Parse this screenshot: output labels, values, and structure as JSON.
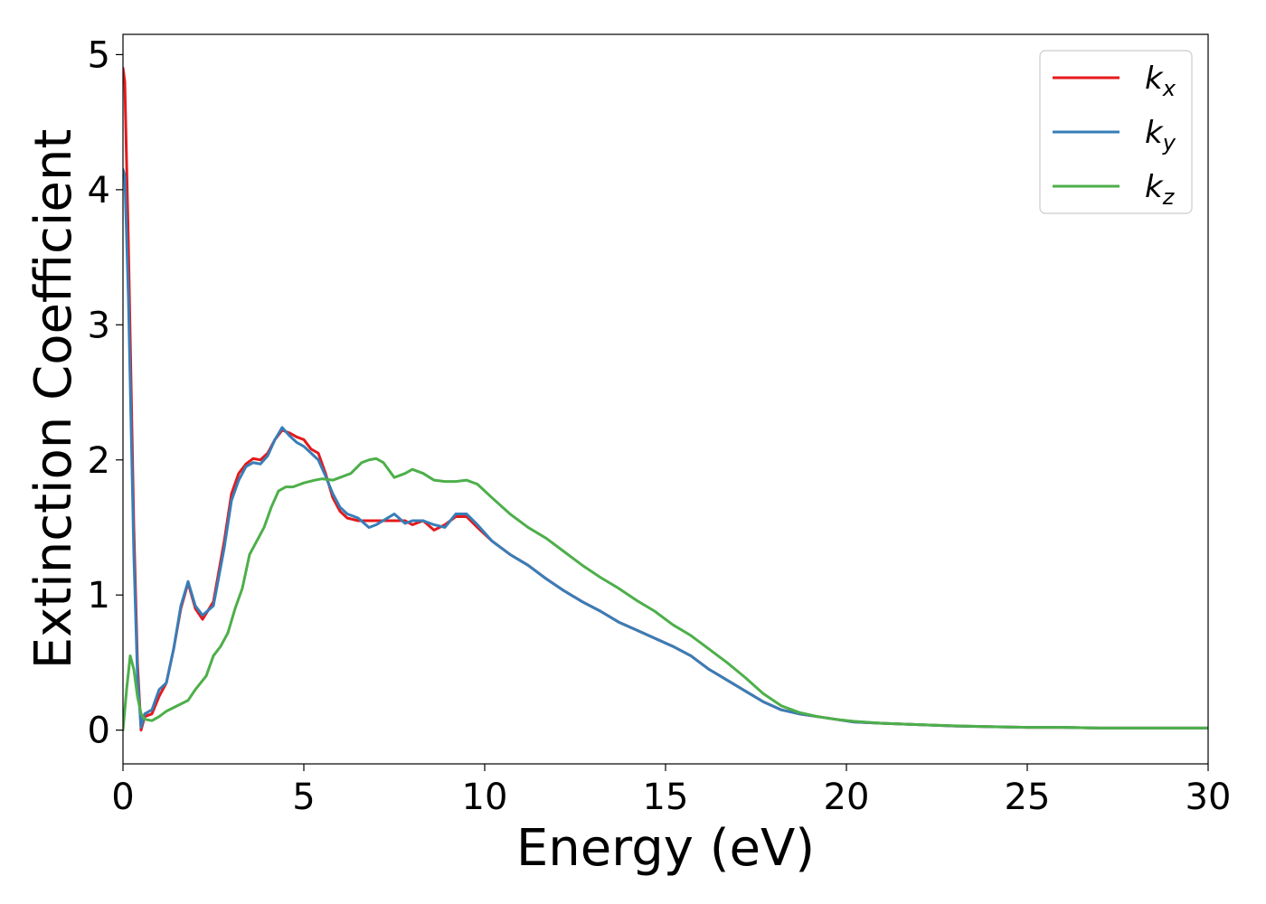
{
  "chart_data": {
    "type": "line",
    "title": "",
    "xlabel": "Energy (eV)",
    "ylabel": "Extinction Coefficient",
    "xlim": [
      0,
      30
    ],
    "ylim": [
      -0.25,
      5.15
    ],
    "xticks": [
      0,
      5,
      10,
      15,
      20,
      25,
      30
    ],
    "yticks": [
      0,
      1,
      2,
      3,
      4,
      5
    ],
    "xtick_labels": [
      "0",
      "5",
      "10",
      "15",
      "20",
      "25",
      "30"
    ],
    "ytick_labels": [
      "0",
      "1",
      "2",
      "3",
      "4",
      "5"
    ],
    "grid": false,
    "legend_position": "top-right",
    "series": [
      {
        "name": "k_x",
        "legend_base": "k",
        "legend_sub": "x",
        "color": "#e41a1c",
        "x": [
          0,
          0.05,
          0.15,
          0.3,
          0.4,
          0.5,
          0.6,
          0.8,
          1.0,
          1.2,
          1.4,
          1.6,
          1.8,
          2.0,
          2.2,
          2.5,
          2.8,
          3.0,
          3.2,
          3.4,
          3.6,
          3.8,
          4.0,
          4.2,
          4.4,
          4.6,
          4.8,
          5.0,
          5.2,
          5.4,
          5.6,
          5.8,
          6.0,
          6.2,
          6.5,
          7.0,
          7.5,
          7.8,
          8.0,
          8.3,
          8.6,
          8.9,
          9.2,
          9.5,
          9.8,
          10.2,
          10.7,
          11.2,
          11.7,
          12.2,
          12.7,
          13.2,
          13.7,
          14.2,
          14.7,
          15.2,
          15.7,
          16.2,
          16.7,
          17.2,
          17.7,
          18.2,
          18.7,
          19.2,
          19.7,
          20.2,
          21.0,
          22.0,
          23.0,
          24.0,
          25.0,
          26.0,
          27.0,
          28.0,
          29.0,
          30.0
        ],
        "y": [
          4.9,
          4.8,
          3.6,
          1.5,
          0.5,
          0.0,
          0.1,
          0.12,
          0.25,
          0.35,
          0.6,
          0.9,
          1.09,
          0.9,
          0.82,
          0.95,
          1.4,
          1.75,
          1.9,
          1.97,
          2.01,
          2.0,
          2.05,
          2.15,
          2.22,
          2.2,
          2.17,
          2.15,
          2.08,
          2.05,
          1.9,
          1.72,
          1.62,
          1.57,
          1.55,
          1.55,
          1.55,
          1.55,
          1.52,
          1.55,
          1.48,
          1.52,
          1.58,
          1.58,
          1.5,
          1.4,
          1.3,
          1.22,
          1.12,
          1.03,
          0.95,
          0.88,
          0.8,
          0.74,
          0.68,
          0.62,
          0.55,
          0.45,
          0.37,
          0.29,
          0.21,
          0.15,
          0.12,
          0.1,
          0.08,
          0.06,
          0.05,
          0.04,
          0.03,
          0.025,
          0.02,
          0.02,
          0.015,
          0.015,
          0.015,
          0.015
        ]
      },
      {
        "name": "k_y",
        "legend_base": "k",
        "legend_sub": "y",
        "color": "#377eb8",
        "x": [
          0,
          0.05,
          0.15,
          0.3,
          0.4,
          0.5,
          0.6,
          0.8,
          1.0,
          1.2,
          1.4,
          1.6,
          1.8,
          2.0,
          2.2,
          2.5,
          2.8,
          3.0,
          3.2,
          3.4,
          3.6,
          3.8,
          4.0,
          4.2,
          4.4,
          4.6,
          4.8,
          5.0,
          5.2,
          5.4,
          5.6,
          5.8,
          6.0,
          6.2,
          6.5,
          6.8,
          7.0,
          7.5,
          7.8,
          8.0,
          8.3,
          8.6,
          8.9,
          9.2,
          9.5,
          9.8,
          10.2,
          10.7,
          11.2,
          11.7,
          12.2,
          12.7,
          13.2,
          13.7,
          14.2,
          14.7,
          15.2,
          15.7,
          16.2,
          16.7,
          17.2,
          17.7,
          18.2,
          18.7,
          19.2,
          19.7,
          20.2,
          21.0,
          22.0,
          23.0,
          24.0,
          25.0,
          26.0,
          27.0,
          28.0,
          29.0,
          30.0
        ],
        "y": [
          4.15,
          4.1,
          3.2,
          1.3,
          0.4,
          0.02,
          0.12,
          0.15,
          0.3,
          0.35,
          0.6,
          0.92,
          1.1,
          0.92,
          0.85,
          0.92,
          1.35,
          1.7,
          1.85,
          1.95,
          1.98,
          1.97,
          2.03,
          2.15,
          2.24,
          2.18,
          2.13,
          2.1,
          2.05,
          2.0,
          1.88,
          1.75,
          1.65,
          1.6,
          1.57,
          1.5,
          1.52,
          1.6,
          1.53,
          1.55,
          1.55,
          1.52,
          1.5,
          1.6,
          1.6,
          1.52,
          1.4,
          1.3,
          1.22,
          1.12,
          1.03,
          0.95,
          0.88,
          0.8,
          0.74,
          0.68,
          0.62,
          0.55,
          0.45,
          0.37,
          0.29,
          0.21,
          0.15,
          0.12,
          0.1,
          0.08,
          0.06,
          0.05,
          0.04,
          0.03,
          0.025,
          0.02,
          0.02,
          0.015,
          0.015,
          0.015,
          0.015
        ]
      },
      {
        "name": "k_z",
        "legend_base": "k",
        "legend_sub": "z",
        "color": "#4daf4a",
        "x": [
          0,
          0.1,
          0.2,
          0.3,
          0.4,
          0.5,
          0.6,
          0.8,
          1.0,
          1.2,
          1.5,
          1.8,
          2.0,
          2.3,
          2.5,
          2.7,
          2.9,
          3.1,
          3.3,
          3.5,
          3.7,
          3.9,
          4.1,
          4.3,
          4.5,
          4.7,
          5.0,
          5.3,
          5.5,
          5.8,
          6.0,
          6.3,
          6.6,
          6.8,
          7.0,
          7.2,
          7.5,
          7.8,
          8.0,
          8.3,
          8.6,
          8.9,
          9.2,
          9.5,
          9.8,
          10.2,
          10.7,
          11.2,
          11.7,
          12.2,
          12.7,
          13.2,
          13.7,
          14.2,
          14.7,
          15.2,
          15.7,
          16.2,
          16.7,
          17.2,
          17.7,
          18.2,
          18.7,
          19.2,
          19.7,
          20.2,
          21.0,
          22.0,
          23.0,
          24.0,
          25.0,
          26.0,
          27.0,
          28.0,
          29.0,
          30.0
        ],
        "y": [
          0.0,
          0.3,
          0.55,
          0.45,
          0.25,
          0.12,
          0.08,
          0.07,
          0.1,
          0.14,
          0.18,
          0.22,
          0.3,
          0.4,
          0.55,
          0.62,
          0.72,
          0.9,
          1.05,
          1.3,
          1.4,
          1.5,
          1.65,
          1.77,
          1.8,
          1.8,
          1.83,
          1.85,
          1.86,
          1.85,
          1.87,
          1.9,
          1.98,
          2.0,
          2.01,
          1.98,
          1.87,
          1.9,
          1.93,
          1.9,
          1.85,
          1.84,
          1.84,
          1.85,
          1.82,
          1.72,
          1.6,
          1.5,
          1.42,
          1.32,
          1.22,
          1.13,
          1.05,
          0.96,
          0.88,
          0.78,
          0.7,
          0.6,
          0.5,
          0.39,
          0.27,
          0.18,
          0.13,
          0.1,
          0.08,
          0.065,
          0.05,
          0.04,
          0.032,
          0.025,
          0.02,
          0.02,
          0.015,
          0.015,
          0.015,
          0.015
        ]
      }
    ]
  }
}
